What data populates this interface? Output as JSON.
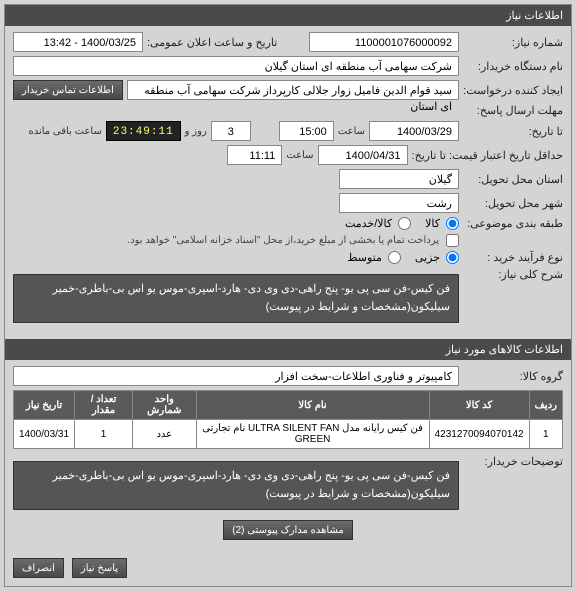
{
  "sections": {
    "needInfo": "اطلاعات نياز",
    "itemsInfo": "اطلاعات کالاهای مورد نياز"
  },
  "labels": {
    "needNumber": "شماره نياز:",
    "buyerOrg": "نام دستگاه خريدار:",
    "creator": "ايجاد کننده درخواست:",
    "publicDateTime": "تاريخ و ساعت اعلان عمومی:",
    "replyDeadline": "مهلت ارسال پاسخ:",
    "toDate": "تا تاريخ:",
    "priceDeadline": "حداقل تاريخ اعتبار قيمت: تا تاريخ:",
    "deliveryProvince": "استان محل تحويل:",
    "deliveryCity": "شهر محل تحويل:",
    "groupType": "طبقه بندی موضوعی:",
    "buyProcess": "نوع فرآيند خريد :",
    "mainDesc": "شرح کلی نياز:",
    "goodsGroup": "گروه کالا:",
    "buyerNotes": "توضيحات خريدار:",
    "contactBtn": "اطلاعات تماس خريدار",
    "time": "ساعت",
    "day": "روز و",
    "remaining": "ساعت باقی مانده",
    "goods": "کالا",
    "service": "کالا/خدمت",
    "partialPay": "پرداخت تمام يا بخشی از مبلغ خريد،از محل \"اسناد خزانه اسلامی\" خواهد بود.",
    "low": "جزيی",
    "mid": "متوسط",
    "attachBtn": "مشاهده مدارک پيوستی (2)",
    "answerBtn": "پاسخ نياز",
    "cancelBtn": "انصراف"
  },
  "values": {
    "needNumber": "1100001076000092",
    "buyerOrg": "شرکت سهامی آب منطقه ای استان گيلان",
    "creator": "سيد قوام الدين فاميل زوار جلالی کارپرداز شرکت سهامی آب منطقه ای استان",
    "publicDateTime": "1400/03/25 - 13:42",
    "replyDate": "1400/03/29",
    "replyTime": "15:00",
    "replyDays": "3",
    "countdown": "23:49:11",
    "priceDate": "1400/04/31",
    "priceTime": "11:11",
    "province": "گيلان",
    "city": "رشت",
    "mainDesc": "فن کيس-فن سی پی يو- پنج راهی-دی وی دی- هارد-اسپری-موس يو اس بی-باطری-خمير سيليکون(مشخصات و شرايط در پيوست)",
    "goodsGroup": "کامپيوتر و فناوری اطلاعات-سخت افزار",
    "buyerNotes": "فن کيس-فن سی پی يو- پنج راهی-دی وی دی- هارد-اسپری-موس يو اس بی-باطری-خمير سيليکون(مشخصات و شرايط در پيوست)"
  },
  "table": {
    "headers": [
      "رديف",
      "کد کالا",
      "نام کالا",
      "واحد شمارش",
      "تعداد / مقدار",
      "تاريخ نياز"
    ],
    "rows": [
      [
        "1",
        "4231270094070142",
        "فن کيس رايانه مدل ULTRA SILENT FAN نام تجارتی GREEN",
        "عدد",
        "1",
        "1400/03/31"
      ]
    ]
  },
  "colors": {
    "headerBg": "#4a4a4a",
    "headerFg": "#ffffff",
    "pageBg": "#d4d4d4",
    "fieldBg": "#ffffff",
    "border": "#888888",
    "descBg": "#555555",
    "countdownBg": "#222222",
    "countdownFg": "#ffff66"
  }
}
